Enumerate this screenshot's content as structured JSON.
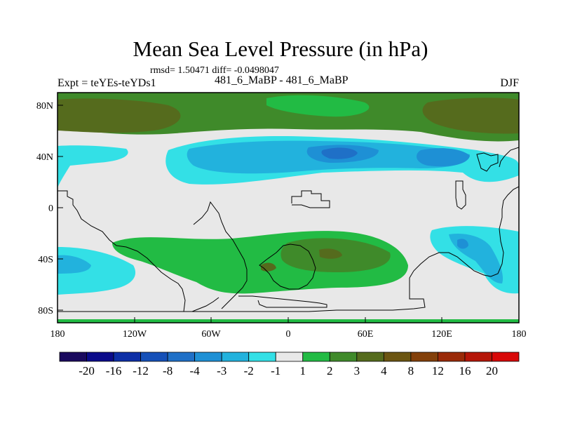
{
  "header": {
    "title": "Mean Sea Level Pressure (in hPa)",
    "stats": "rmsd= 1.50471 diff= -0.0498047",
    "experiment": "Expt = teYEs-teYDs1",
    "cases": "481_6_MaBP - 481_6_MaBP",
    "season": "DJF"
  },
  "axes": {
    "y_ticks": [
      "80N",
      "40N",
      "0",
      "40S",
      "80S"
    ],
    "x_ticks": [
      "180",
      "120W",
      "60W",
      "0",
      "60E",
      "120E",
      "180"
    ]
  },
  "colorbar": {
    "colors": [
      "#1a0a5e",
      "#0b0b8a",
      "#0d2fa6",
      "#1550b8",
      "#1f70c7",
      "#1e90d5",
      "#22b2dd",
      "#33e0e6",
      "#e8e8e8",
      "#22bb44",
      "#3f8a2a",
      "#556b1d",
      "#6b5512",
      "#83400a",
      "#9a2a08",
      "#b51608",
      "#d80808"
    ],
    "labels": [
      "-20",
      "-16",
      "-12",
      "-8",
      "-4",
      "-3",
      "-2",
      "-1",
      "1",
      "2",
      "3",
      "4",
      "8",
      "12",
      "16",
      "20"
    ]
  },
  "fill_colors": {
    "neutral": "#e8e8e8",
    "green": "#22bb44",
    "darkgreen": "#3f8a2a",
    "olive": "#556b1d",
    "cyan": "#33e0e6",
    "blue1": "#22b2dd",
    "blue2": "#1e90d5",
    "blue3": "#1f70c7"
  }
}
